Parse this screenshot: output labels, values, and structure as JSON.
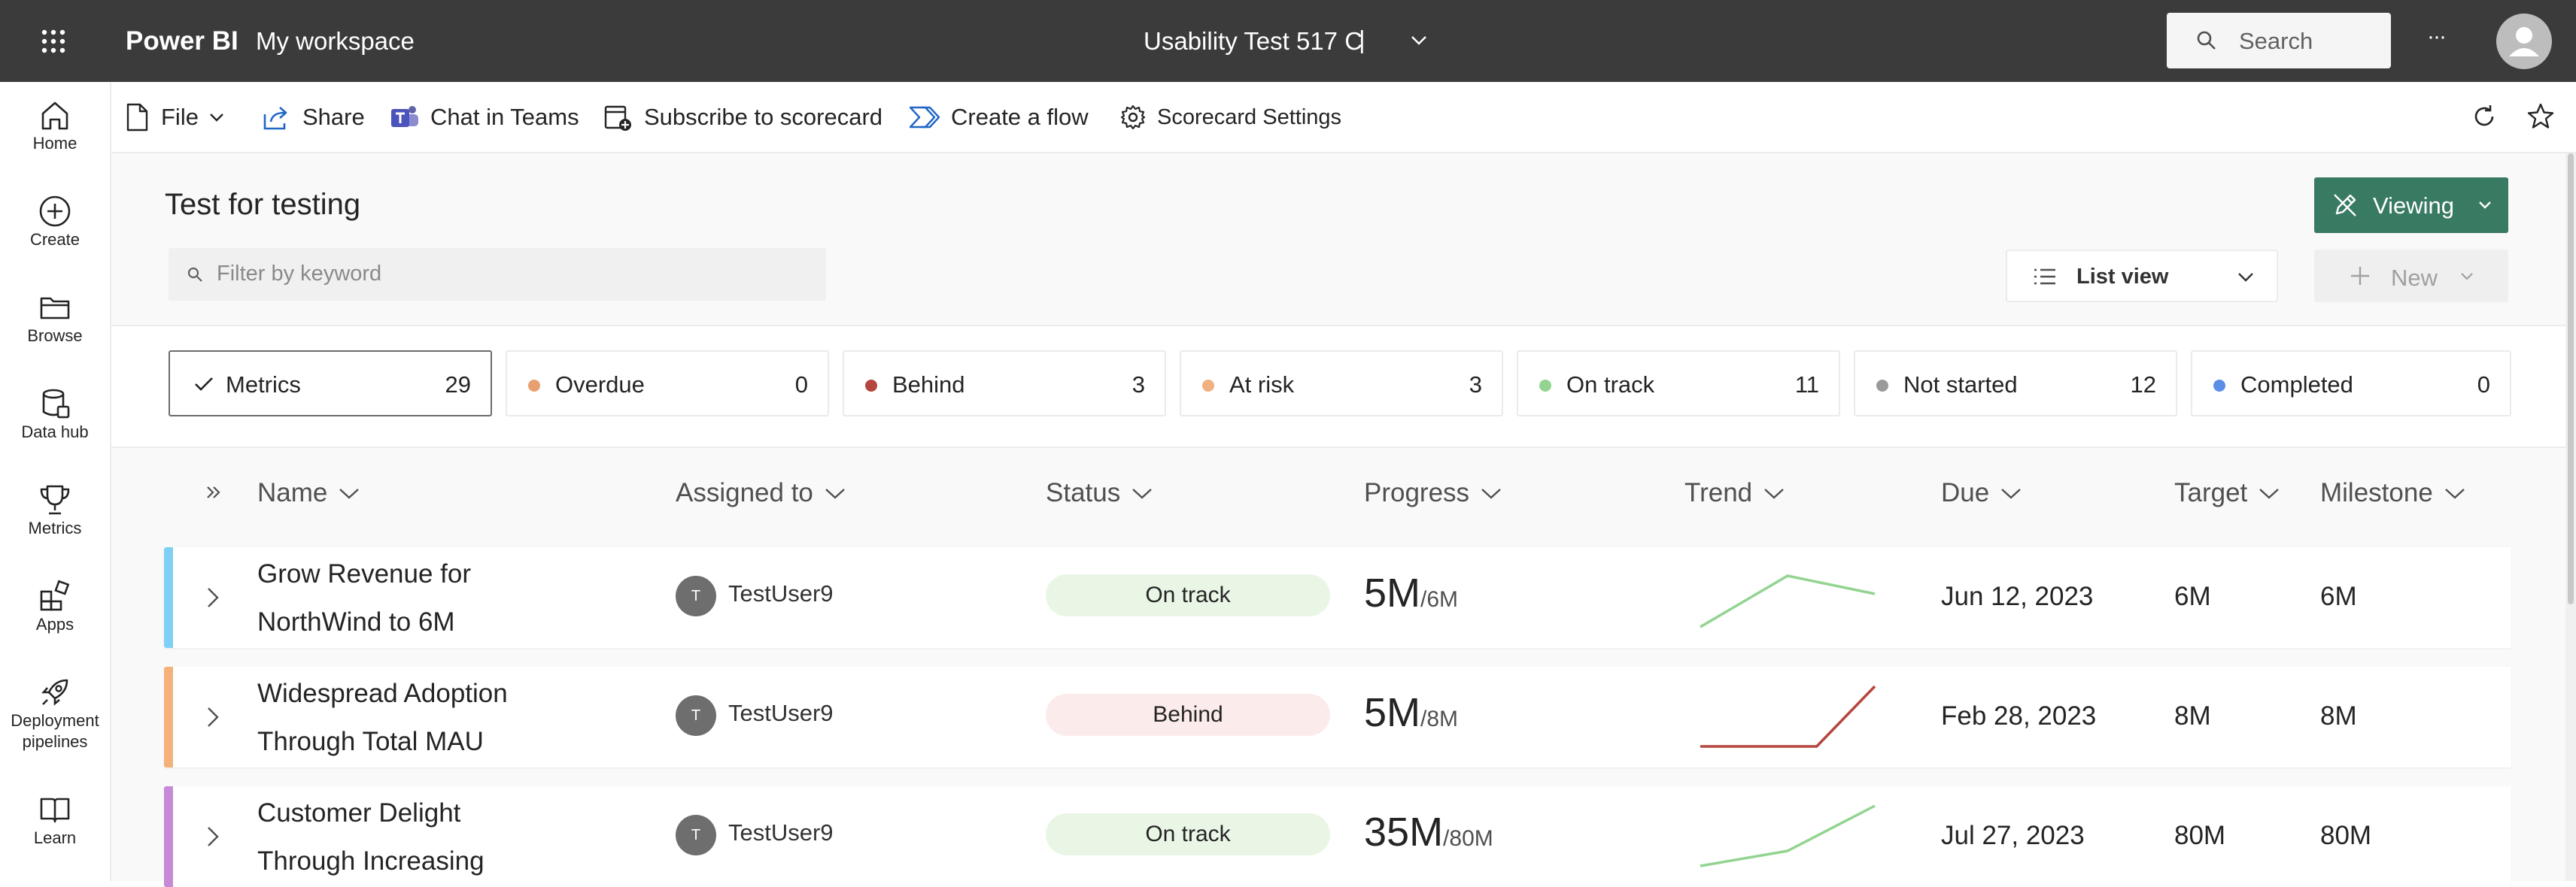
{
  "topbar": {
    "app_name": "Power BI",
    "workspace": "My workspace",
    "report_title": "Usability Test 517 C",
    "title_separator": "|",
    "search_placeholder": "Search",
    "more": "···"
  },
  "nav": [
    {
      "label": "Home",
      "icon": "home-icon"
    },
    {
      "label": "Create",
      "icon": "create-icon"
    },
    {
      "label": "Browse",
      "icon": "browse-icon"
    },
    {
      "label": "Data hub",
      "icon": "data-hub-icon"
    },
    {
      "label": "Metrics",
      "icon": "metrics-icon"
    },
    {
      "label": "Apps",
      "icon": "apps-icon"
    },
    {
      "label": "Deployment pipelines",
      "label_line1": "Deployment",
      "label_line2": "pipelines",
      "icon": "rocket-icon"
    },
    {
      "label": "Learn",
      "icon": "learn-icon"
    }
  ],
  "commands": {
    "file": "File",
    "share": "Share",
    "chat": "Chat in Teams",
    "subscribe": "Subscribe to scorecard",
    "flow": "Create a flow",
    "settings": "Scorecard Settings"
  },
  "scorecard": {
    "title": "Test for testing",
    "filter_placeholder": "Filter by keyword",
    "viewing_label": "Viewing",
    "list_view_label": "List view",
    "new_label": "New"
  },
  "chips": [
    {
      "label": "Metrics",
      "count": "29",
      "color": ""
    },
    {
      "label": "Overdue",
      "count": "0",
      "color": "#e8a070"
    },
    {
      "label": "Behind",
      "count": "3",
      "color": "#b5463f"
    },
    {
      "label": "At risk",
      "count": "3",
      "color": "#f0b080"
    },
    {
      "label": "On track",
      "count": "11",
      "color": "#92d490"
    },
    {
      "label": "Not started",
      "count": "12",
      "color": "#9a9a9a"
    },
    {
      "label": "Completed",
      "count": "0",
      "color": "#5b8ee6"
    }
  ],
  "columns": {
    "name": "Name",
    "assigned": "Assigned to",
    "status": "Status",
    "progress": "Progress",
    "trend": "Trend",
    "due": "Due",
    "target": "Target",
    "milestone": "Milestone"
  },
  "rows": [
    {
      "name_line1": "Grow Revenue for",
      "name_line2": "NorthWind to 6M",
      "avatar_initial": "T",
      "assignee": "TestUser9",
      "status": "On track",
      "progress_value": "5M",
      "progress_target": "/6M",
      "due": "Jun 12, 2023",
      "target": "6M",
      "milestone": "6M",
      "accent_color": "#7fd0f5",
      "status_bg": "#e9f6e6",
      "trend_color": "#92d490",
      "trend": [
        0.0,
        0.85,
        0.55
      ]
    },
    {
      "name_line1": "Widespread Adoption",
      "name_line2": "Through Total MAU",
      "avatar_initial": "T",
      "assignee": "TestUser9",
      "status": "Behind",
      "progress_value": "5M",
      "progress_target": "/8M",
      "due": "Feb 28, 2023",
      "target": "8M",
      "milestone": "8M",
      "accent_color": "#f4b27a",
      "status_bg": "#fbeceb",
      "trend_color": "#b5463f",
      "trend": [
        0.0,
        0.0,
        0.0,
        1.0
      ]
    },
    {
      "name_line1": "Customer Delight",
      "name_line2": "Through Increasing",
      "avatar_initial": "T",
      "assignee": "TestUser9",
      "status": "On track",
      "progress_value": "35M",
      "progress_target": "/80M",
      "due": "Jul 27, 2023",
      "target": "80M",
      "milestone": "80M",
      "accent_color": "#c68ad6",
      "status_bg": "#e9f6e6",
      "trend_color": "#92d490",
      "trend": [
        0.0,
        0.25,
        1.0
      ]
    }
  ]
}
